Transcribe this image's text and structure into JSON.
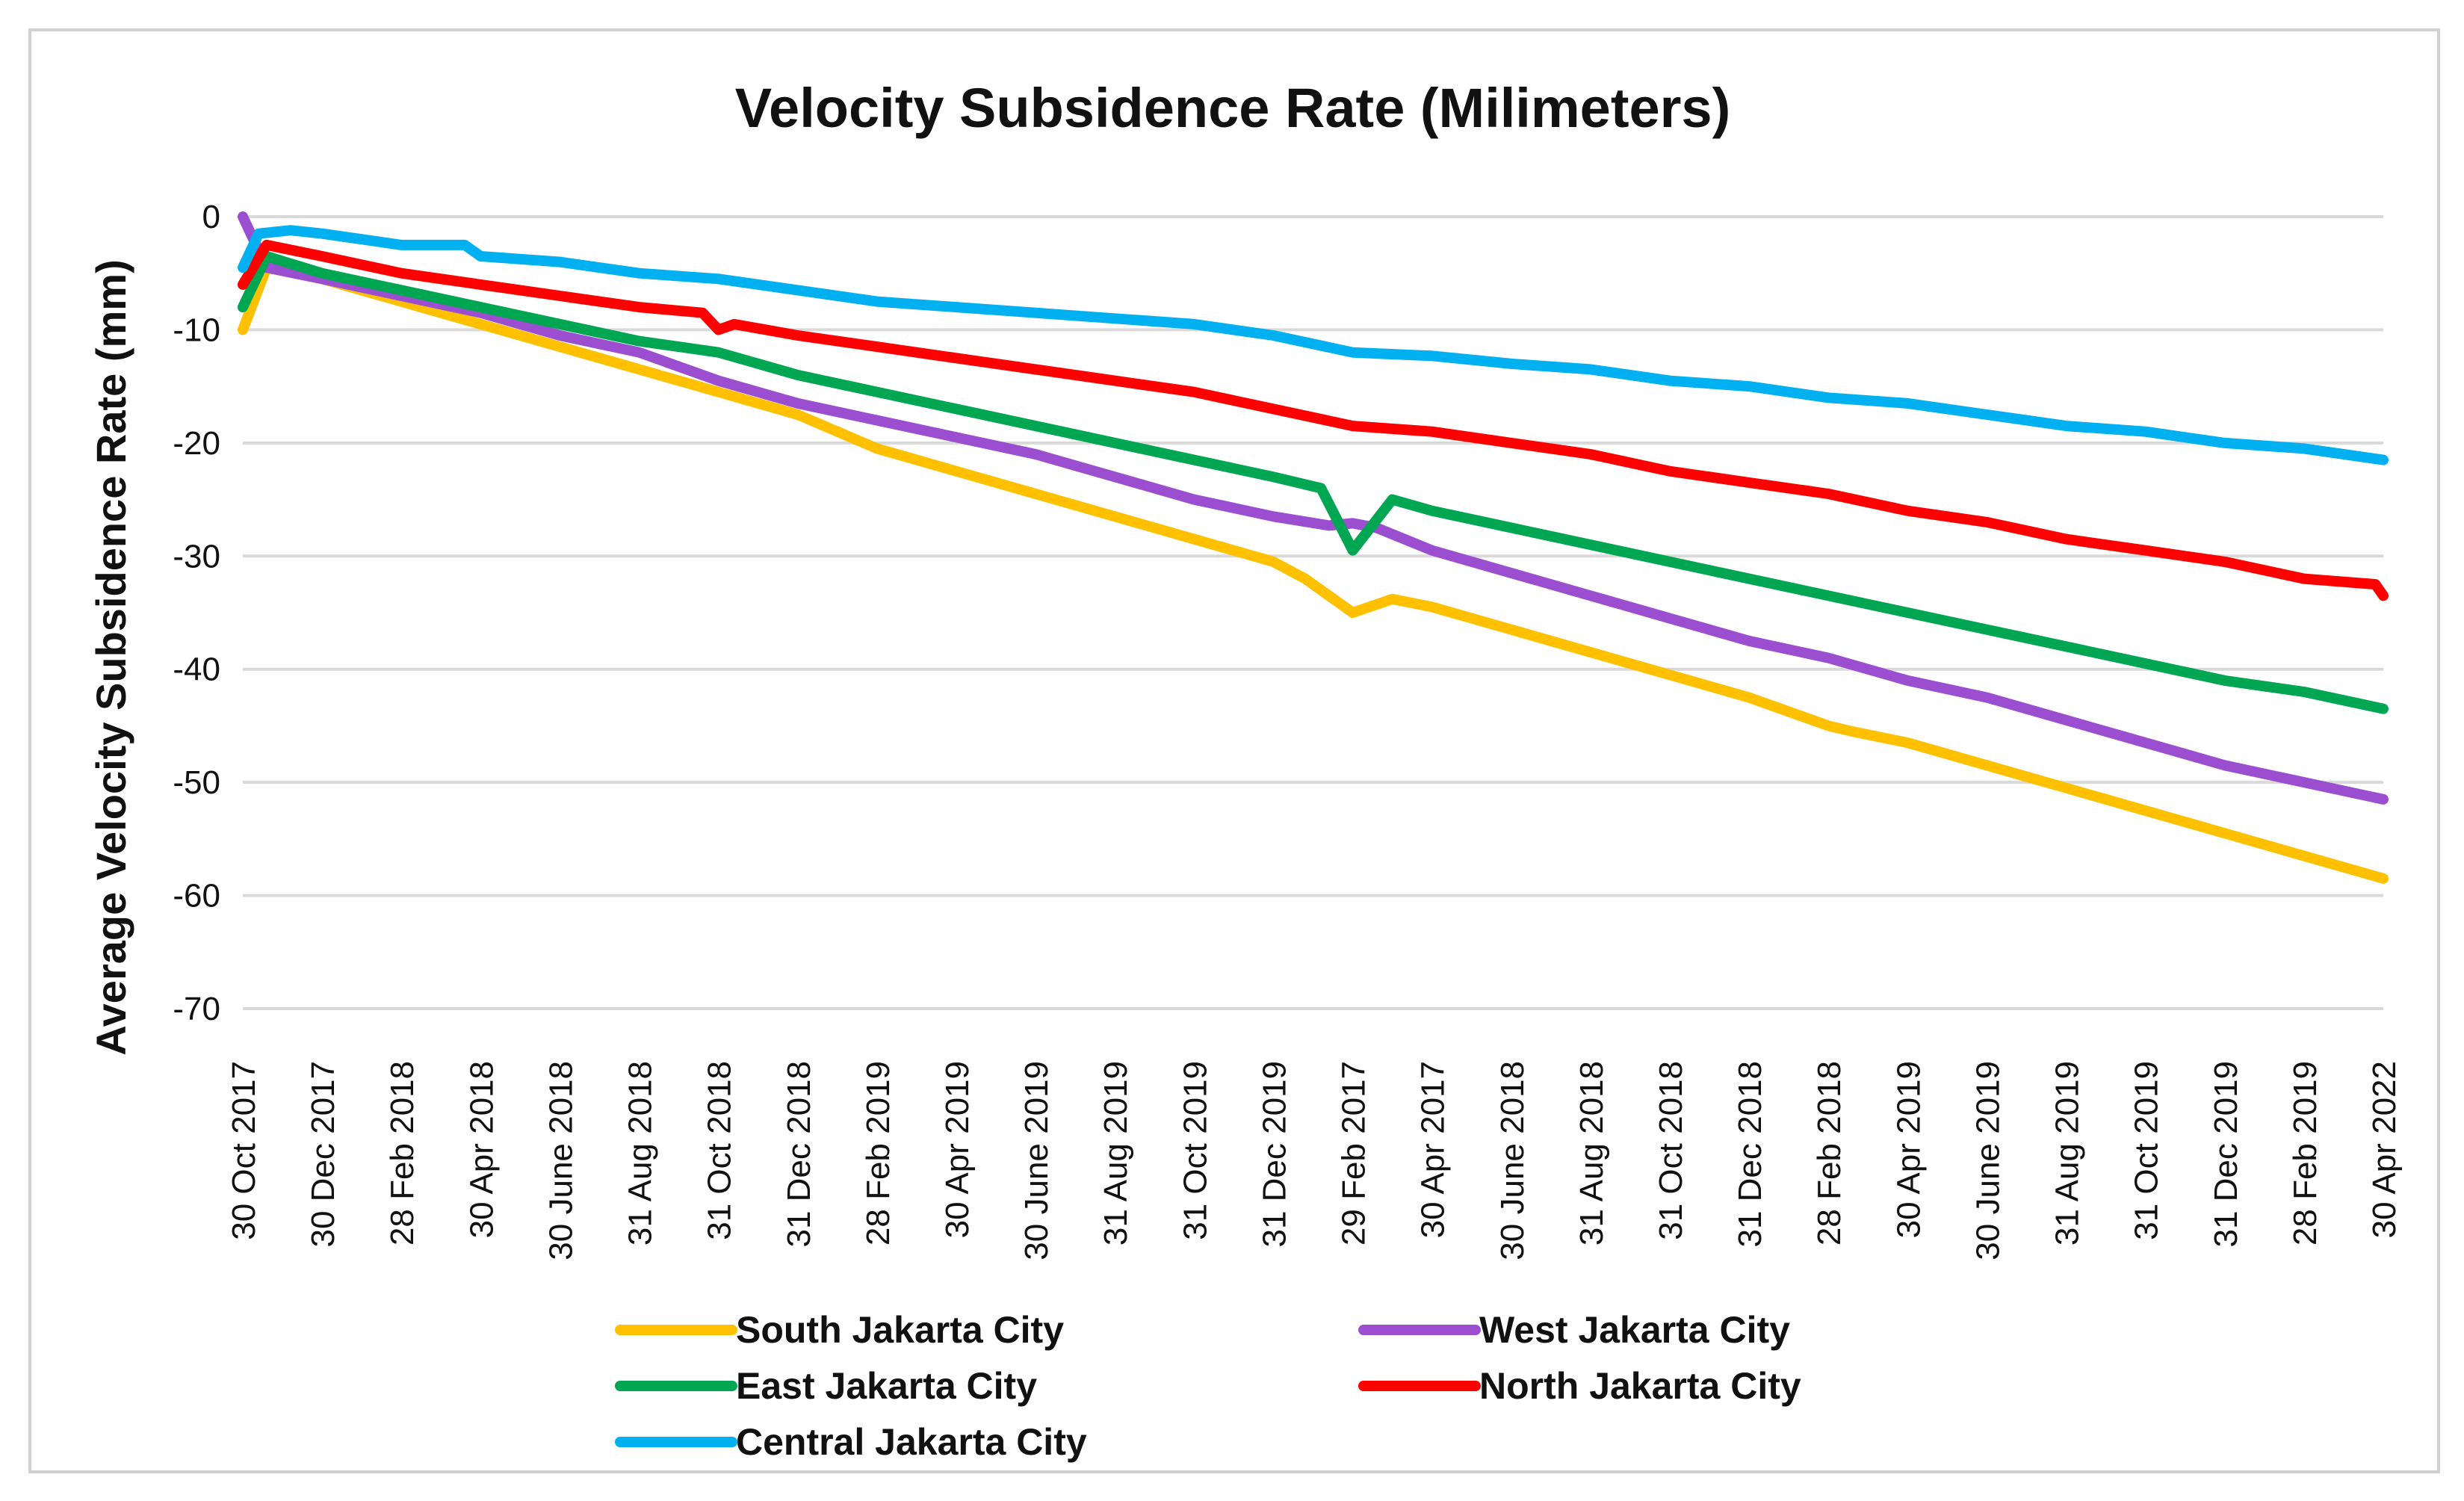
{
  "chart_data": {
    "type": "line",
    "title": "Velocity Subsidence Rate (Milimeters)",
    "xlabel": "",
    "ylabel": "Average Velocity Subsidence Rate (mm)",
    "ylim": [
      -70,
      0
    ],
    "yticks": [
      0,
      -10,
      -20,
      -30,
      -40,
      -50,
      -60,
      -70
    ],
    "ytick_labels": [
      "0",
      "-10",
      "-20",
      "-30",
      "-40",
      "-50",
      "-60",
      "-70"
    ],
    "grid": true,
    "legend_position": "bottom",
    "x_index_range": [
      0,
      27
    ],
    "tick_labels": [
      "30 Oct 2017",
      "30 Dec 2017",
      "28 Feb 2018",
      "30 Apr 2018",
      "30 June 2018",
      "31 Aug 2018",
      "31 Oct 2018",
      "31 Dec 2018",
      "28 Feb 2019",
      "30 Apr 2019",
      "30 June 2019",
      "31 Aug 2019",
      "31 Oct 2019",
      "31 Dec 2019",
      "29 Feb 2017",
      "30 Apr 2017",
      "30 June 2018",
      "31 Aug 2018",
      "31 Oct 2018",
      "31 Dec 2018",
      "28 Feb 2018",
      "30 Apr 2019",
      "30 June 2019",
      "31 Aug 2019",
      "31 Oct 2019",
      "31 Dec 2019",
      "28 Feb 2019",
      "30 Apr 2022"
    ],
    "series": [
      {
        "name": "South Jakarta City",
        "color": "#FFC000",
        "points": [
          [
            0,
            -10
          ],
          [
            0.3,
            -4.5
          ],
          [
            1,
            -5.5
          ],
          [
            2,
            -7.5
          ],
          [
            3,
            -9.5
          ],
          [
            4,
            -11.5
          ],
          [
            5,
            -13.5
          ],
          [
            6,
            -15.5
          ],
          [
            7,
            -17.5
          ],
          [
            8,
            -20.5
          ],
          [
            9,
            -22.5
          ],
          [
            10,
            -24.5
          ],
          [
            11,
            -26.5
          ],
          [
            12,
            -28.5
          ],
          [
            13,
            -30.5
          ],
          [
            13.4,
            -32
          ],
          [
            14,
            -35
          ],
          [
            14.5,
            -33.8
          ],
          [
            15,
            -34.5
          ],
          [
            16,
            -36.5
          ],
          [
            17,
            -38.5
          ],
          [
            18,
            -40.5
          ],
          [
            19,
            -42.5
          ],
          [
            20,
            -45
          ],
          [
            20.3,
            -45.5
          ],
          [
            21,
            -46.5
          ],
          [
            22,
            -48.5
          ],
          [
            23,
            -50.5
          ],
          [
            24,
            -52.5
          ],
          [
            25,
            -54.5
          ],
          [
            26,
            -56.5
          ],
          [
            27,
            -58.5
          ]
        ]
      },
      {
        "name": "West Jakarta City",
        "color": "#9B4FD0",
        "points": [
          [
            0,
            0
          ],
          [
            0.3,
            -4.5
          ],
          [
            1,
            -5.5
          ],
          [
            2,
            -7
          ],
          [
            3,
            -8.5
          ],
          [
            4,
            -10.5
          ],
          [
            5,
            -12
          ],
          [
            6,
            -14.5
          ],
          [
            7,
            -16.5
          ],
          [
            8,
            -18
          ],
          [
            9,
            -19.5
          ],
          [
            10,
            -21
          ],
          [
            11,
            -23
          ],
          [
            12,
            -25
          ],
          [
            13,
            -26.5
          ],
          [
            13.7,
            -27.3
          ],
          [
            14,
            -27.1
          ],
          [
            14.3,
            -27.5
          ],
          [
            15,
            -29.5
          ],
          [
            16,
            -31.5
          ],
          [
            17,
            -33.5
          ],
          [
            18,
            -35.5
          ],
          [
            19,
            -37.5
          ],
          [
            20,
            -39
          ],
          [
            21,
            -41
          ],
          [
            22,
            -42.5
          ],
          [
            23,
            -44.5
          ],
          [
            24,
            -46.5
          ],
          [
            25,
            -48.5
          ],
          [
            26,
            -50
          ],
          [
            27,
            -51.5
          ]
        ]
      },
      {
        "name": "East Jakarta City",
        "color": "#00A651",
        "points": [
          [
            0,
            -8
          ],
          [
            0.3,
            -3.5
          ],
          [
            1,
            -5
          ],
          [
            2,
            -6.5
          ],
          [
            3,
            -8
          ],
          [
            4,
            -9.5
          ],
          [
            5,
            -11
          ],
          [
            6,
            -12
          ],
          [
            7,
            -14
          ],
          [
            8,
            -15.5
          ],
          [
            9,
            -17
          ],
          [
            10,
            -18.5
          ],
          [
            11,
            -20
          ],
          [
            12,
            -21.5
          ],
          [
            13,
            -23
          ],
          [
            13.6,
            -24
          ],
          [
            14,
            -29.5
          ],
          [
            14.5,
            -25
          ],
          [
            15,
            -26
          ],
          [
            16,
            -27.5
          ],
          [
            17,
            -29
          ],
          [
            18,
            -30.5
          ],
          [
            19,
            -32
          ],
          [
            20,
            -33.5
          ],
          [
            21,
            -35
          ],
          [
            22,
            -36.5
          ],
          [
            23,
            -38
          ],
          [
            24,
            -39.5
          ],
          [
            25,
            -41
          ],
          [
            26,
            -42
          ],
          [
            27,
            -43.5
          ]
        ]
      },
      {
        "name": "North Jakarta City",
        "color": "#FF0000",
        "points": [
          [
            0,
            -6
          ],
          [
            0.3,
            -2.5
          ],
          [
            1,
            -3.5
          ],
          [
            2,
            -5
          ],
          [
            3,
            -6
          ],
          [
            4,
            -7
          ],
          [
            5,
            -8
          ],
          [
            5.8,
            -8.5
          ],
          [
            6,
            -10
          ],
          [
            6.2,
            -9.5
          ],
          [
            7,
            -10.5
          ],
          [
            8,
            -11.5
          ],
          [
            9,
            -12.5
          ],
          [
            10,
            -13.5
          ],
          [
            11,
            -14.5
          ],
          [
            12,
            -15.5
          ],
          [
            13,
            -17
          ],
          [
            14,
            -18.5
          ],
          [
            15,
            -19
          ],
          [
            16,
            -20
          ],
          [
            17,
            -21
          ],
          [
            18,
            -22.5
          ],
          [
            19,
            -23.5
          ],
          [
            20,
            -24.5
          ],
          [
            21,
            -26
          ],
          [
            22,
            -27
          ],
          [
            23,
            -28.5
          ],
          [
            24,
            -29.5
          ],
          [
            25,
            -30.5
          ],
          [
            26,
            -32
          ],
          [
            26.9,
            -32.5
          ],
          [
            27,
            -33.5
          ]
        ]
      },
      {
        "name": "Central Jakarta City",
        "color": "#00B0F0",
        "points": [
          [
            0,
            -4.5
          ],
          [
            0.2,
            -1.5
          ],
          [
            0.6,
            -1.2
          ],
          [
            1,
            -1.5
          ],
          [
            2,
            -2.5
          ],
          [
            2.8,
            -2.5
          ],
          [
            3,
            -3.5
          ],
          [
            4,
            -4
          ],
          [
            5,
            -5
          ],
          [
            6,
            -5.5
          ],
          [
            7,
            -6.5
          ],
          [
            8,
            -7.5
          ],
          [
            9,
            -8
          ],
          [
            10,
            -8.5
          ],
          [
            11,
            -9
          ],
          [
            12,
            -9.5
          ],
          [
            13,
            -10.5
          ],
          [
            14,
            -12
          ],
          [
            15,
            -12.3
          ],
          [
            16,
            -13
          ],
          [
            17,
            -13.5
          ],
          [
            18,
            -14.5
          ],
          [
            19,
            -15
          ],
          [
            20,
            -16
          ],
          [
            21,
            -16.5
          ],
          [
            22,
            -17.5
          ],
          [
            23,
            -18.5
          ],
          [
            24,
            -19
          ],
          [
            25,
            -20
          ],
          [
            26,
            -20.5
          ],
          [
            27,
            -21.5
          ]
        ]
      }
    ]
  }
}
